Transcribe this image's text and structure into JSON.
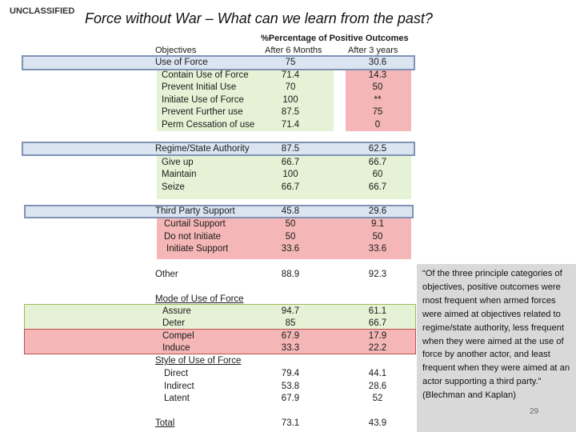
{
  "header": {
    "classification": "UNCLASSIFIED",
    "title": "Force without War – What can we learn from the past?"
  },
  "table": {
    "group_header": "%Percentage of Positive Outcomes",
    "col_objectives": "Objectives",
    "col_6m": "After 6 Months",
    "col_3y": "After 3 years",
    "rows": [
      {
        "label": "Use of Force",
        "v6": "75",
        "v3": "30.6"
      },
      {
        "label": "Contain Use of Force",
        "v6": "71.4",
        "v3": "14.3"
      },
      {
        "label": "Prevent Initial Use",
        "v6": "70",
        "v3": "50"
      },
      {
        "label": "Initiate Use of Force",
        "v6": "100",
        "v3": "**"
      },
      {
        "label": "Prevent Further use",
        "v6": "87.5",
        "v3": "75"
      },
      {
        "label": "Perm Cessation of use",
        "v6": "71.4",
        "v3": "0"
      },
      {
        "label": "Regime/State Authority",
        "v6": "87.5",
        "v3": "62.5"
      },
      {
        "label": "Give up",
        "v6": "66.7",
        "v3": "66.7"
      },
      {
        "label": "Maintain",
        "v6": "100",
        "v3": "60"
      },
      {
        "label": "Seize",
        "v6": "66.7",
        "v3": "66.7"
      },
      {
        "label": "Third Party Support",
        "v6": "45.8",
        "v3": "29.6"
      },
      {
        "label": "Curtail Support",
        "v6": "50",
        "v3": "9.1"
      },
      {
        "label": "Do not Initiate",
        "v6": "50",
        "v3": "50"
      },
      {
        "label": "Initiate Support",
        "v6": "33.6",
        "v3": "33.6"
      },
      {
        "label": "Other",
        "v6": "88.9",
        "v3": "92.3"
      },
      {
        "label": "Mode of Use of Force",
        "v6": "",
        "v3": ""
      },
      {
        "label": "Assure",
        "v6": "94.7",
        "v3": "61.1"
      },
      {
        "label": "Deter",
        "v6": "85",
        "v3": "66.7"
      },
      {
        "label": "Compel",
        "v6": "67.9",
        "v3": "17.9"
      },
      {
        "label": "Induce",
        "v6": "33.3",
        "v3": "22.2"
      },
      {
        "label": "Style of Use of Force",
        "v6": "",
        "v3": ""
      },
      {
        "label": "Direct",
        "v6": "79.4",
        "v3": "44.1"
      },
      {
        "label": "Indirect",
        "v6": "53.8",
        "v3": "28.6"
      },
      {
        "label": "Latent",
        "v6": "67.9",
        "v3": "52"
      },
      {
        "label": "Total",
        "v6": "73.1",
        "v3": "43.9"
      }
    ]
  },
  "quote": {
    "text": "“Of the three principle categories of objectives, positive outcomes were most frequent when armed forces were aimed at objectives related to regime/state authority, less frequent when they were aimed at the use of force by another actor, and least frequent when they were aimed at an actor supporting a third party.”",
    "attribution": "(Blechman and Kaplan)"
  },
  "page_number": "29",
  "colors": {
    "blue_band": "#dbe5f1",
    "green_band": "#e6f2d6",
    "red_band": "#f4b6b6",
    "quote_box": "#d9d9d9"
  }
}
